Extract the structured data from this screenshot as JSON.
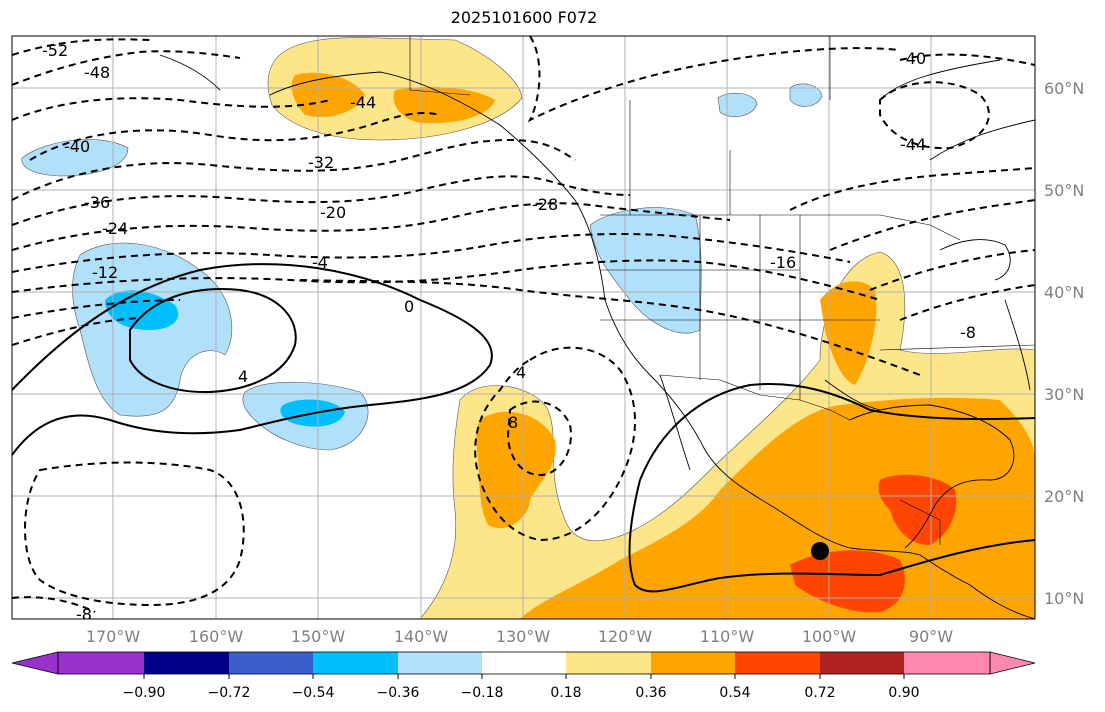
{
  "title": "2025101600 F072",
  "lat_labels": [
    "60°N",
    "50°N",
    "40°N",
    "30°N",
    "20°N",
    "10°N"
  ],
  "lon_labels": [
    "170°W",
    "160°W",
    "150°W",
    "140°W",
    "130°W",
    "120°W",
    "110°W",
    "100°W",
    "90°W"
  ],
  "colorbar": {
    "ticks": [
      "−0.90",
      "−0.72",
      "−0.54",
      "−0.36",
      "−0.18",
      "0.18",
      "0.36",
      "0.54",
      "0.72",
      "0.90"
    ],
    "colors": [
      "#9932cc",
      "#00008b",
      "#3a5fcd",
      "#00bfff",
      "#b0e0fa",
      "#ffffff",
      "#fde68a",
      "#ffa500",
      "#ff4500",
      "#b22222",
      "#ff88b0"
    ]
  },
  "contour_labels": [
    "-52",
    "-48",
    "-44",
    "-40",
    "-36",
    "-32",
    "-28",
    "-24",
    "-20",
    "-16",
    "-12",
    "-8",
    "-4",
    "0",
    "4",
    "8",
    "-40",
    "-44",
    "-8",
    "4"
  ],
  "marker": {
    "name": "point",
    "color": "#000000"
  }
}
